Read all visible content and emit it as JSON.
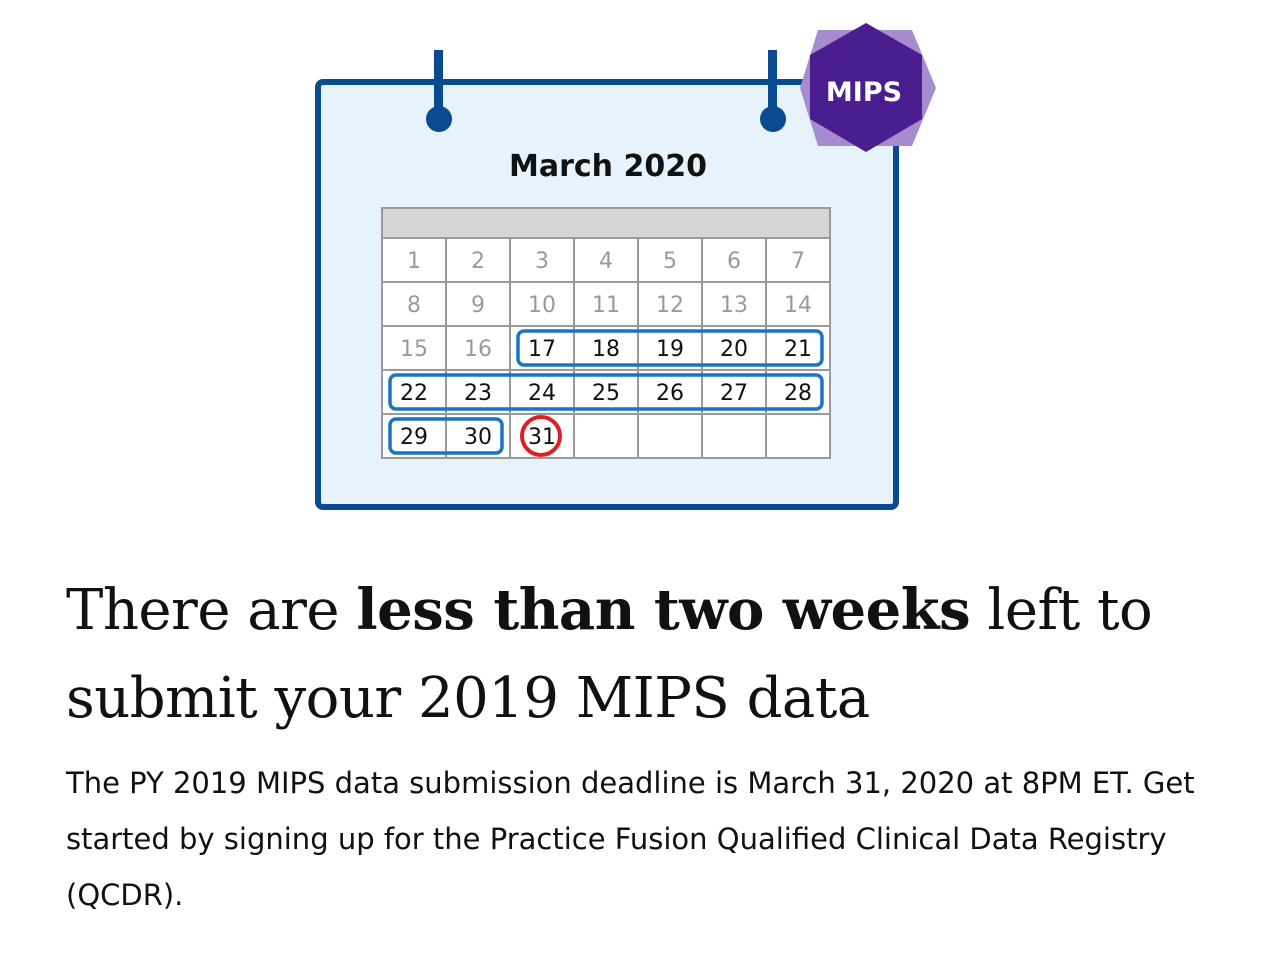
{
  "calendar": {
    "month_label": "March 2020",
    "badge": "MIPS",
    "days": [
      1,
      2,
      3,
      4,
      5,
      6,
      7,
      8,
      9,
      10,
      11,
      12,
      13,
      14,
      15,
      16,
      17,
      18,
      19,
      20,
      21,
      22,
      23,
      24,
      25,
      26,
      27,
      28,
      29,
      30,
      31
    ],
    "faded_days": [
      1,
      2,
      3,
      4,
      5,
      6,
      7,
      8,
      9,
      10,
      11,
      12,
      13,
      14,
      15,
      16
    ],
    "highlighted_ranges": [
      [
        17,
        21
      ],
      [
        22,
        28
      ],
      [
        29,
        30
      ]
    ],
    "deadline_day": 31,
    "icon": "calendar-icon"
  },
  "headline": {
    "before": "There are ",
    "bold": "less than two weeks",
    "after": " left to submit your 2019 MIPS data"
  },
  "body": {
    "text": "The PY 2019 MIPS data submission deadline is March 31, 2020 at 8PM ET. Get started by signing up for the Practice Fusion Qualified Clinical Data Registry (QCDR)."
  },
  "colors": {
    "calendar_border": "#0a4a8f",
    "calendar_fill": "#e6f3fd",
    "header_bar": "#d6d6d6",
    "highlight_border": "#1a73c4",
    "deadline_circle": "#e02020",
    "badge_dark": "#4a1e8e",
    "badge_light": "#a78bcf",
    "faded_text": "#9a9a9a"
  }
}
